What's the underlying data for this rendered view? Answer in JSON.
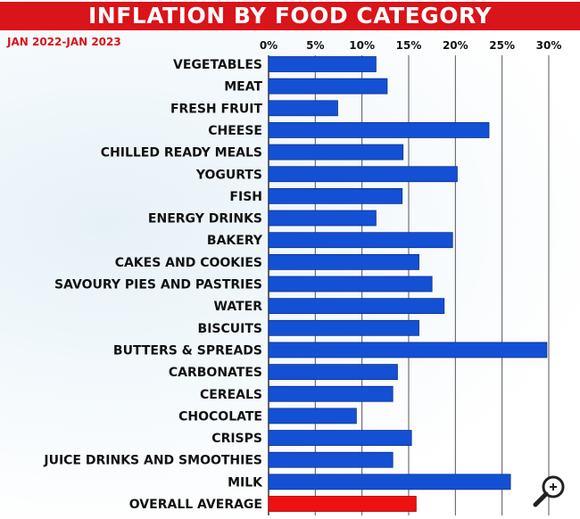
{
  "title": "INFLATION BY  FOOD CATEGORY",
  "subtitle": "JAN 2022-JAN 2023",
  "colors": {
    "title_bg": "#d9141a",
    "bar": "#1450d4",
    "average_bar": "#ee1111",
    "subtitle": "#d9141a"
  },
  "overlay_icon": "zoom-magnifier-icon",
  "chart_data": {
    "type": "bar",
    "orientation": "horizontal",
    "title": "INFLATION BY  FOOD CATEGORY",
    "subtitle": "JAN 2022-JAN 2023",
    "xlim": [
      0,
      30
    ],
    "x_ticks": [
      "0%",
      "5%",
      "10%",
      "15%",
      "20%",
      "25%",
      "30%"
    ],
    "x_tick_values": [
      0,
      5,
      10,
      15,
      20,
      25,
      30
    ],
    "grid": true,
    "categories": [
      "VEGETABLES",
      "MEAT",
      "FRESH FRUIT",
      "CHEESE",
      "CHILLED READY MEALS",
      "YOGURTS",
      "FISH",
      "ENERGY DRINKS",
      "BAKERY",
      "CAKES AND COOKIES",
      "SAVOURY PIES AND PASTRIES",
      "WATER",
      "BISCUITS",
      "BUTTERS & SPREADS",
      "CARBONATES",
      "CEREALS",
      "CHOCOLATE",
      "CRISPS",
      "JUICE DRINKS AND SMOOTHIES",
      "MILK",
      "OVERALL AVERAGE"
    ],
    "values": [
      11.5,
      12.7,
      7.4,
      23.6,
      14.4,
      20.2,
      14.3,
      11.5,
      19.7,
      16.1,
      17.5,
      18.8,
      16.1,
      29.8,
      13.8,
      13.3,
      9.4,
      15.3,
      13.3,
      25.9,
      15.8
    ],
    "highlight": "OVERALL AVERAGE"
  }
}
